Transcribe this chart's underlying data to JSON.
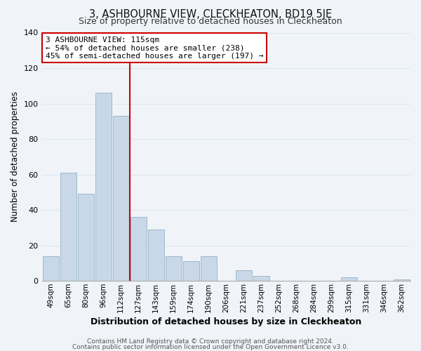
{
  "title": "3, ASHBOURNE VIEW, CLECKHEATON, BD19 5JE",
  "subtitle": "Size of property relative to detached houses in Cleckheaton",
  "xlabel": "Distribution of detached houses by size in Cleckheaton",
  "ylabel": "Number of detached properties",
  "bar_labels": [
    "49sqm",
    "65sqm",
    "80sqm",
    "96sqm",
    "112sqm",
    "127sqm",
    "143sqm",
    "159sqm",
    "174sqm",
    "190sqm",
    "206sqm",
    "221sqm",
    "237sqm",
    "252sqm",
    "268sqm",
    "284sqm",
    "299sqm",
    "315sqm",
    "331sqm",
    "346sqm",
    "362sqm"
  ],
  "bar_values": [
    14,
    61,
    49,
    106,
    93,
    36,
    29,
    14,
    11,
    14,
    0,
    6,
    3,
    0,
    0,
    0,
    0,
    2,
    0,
    0,
    1
  ],
  "bar_color": "#c8d8e8",
  "bar_edge_color": "#a0b8cc",
  "vline_x_index": 4,
  "vline_color": "#cc0000",
  "ylim": [
    0,
    140
  ],
  "yticks": [
    0,
    20,
    40,
    60,
    80,
    100,
    120,
    140
  ],
  "annotation_title": "3 ASHBOURNE VIEW: 115sqm",
  "annotation_line1": "← 54% of detached houses are smaller (238)",
  "annotation_line2": "45% of semi-detached houses are larger (197) →",
  "annotation_box_color": "#ffffff",
  "annotation_box_edge": "#cc0000",
  "footer1": "Contains HM Land Registry data © Crown copyright and database right 2024.",
  "footer2": "Contains public sector information licensed under the Open Government Licence v3.0.",
  "background_color": "#f0f4f8",
  "grid_color": "#dce8f0"
}
